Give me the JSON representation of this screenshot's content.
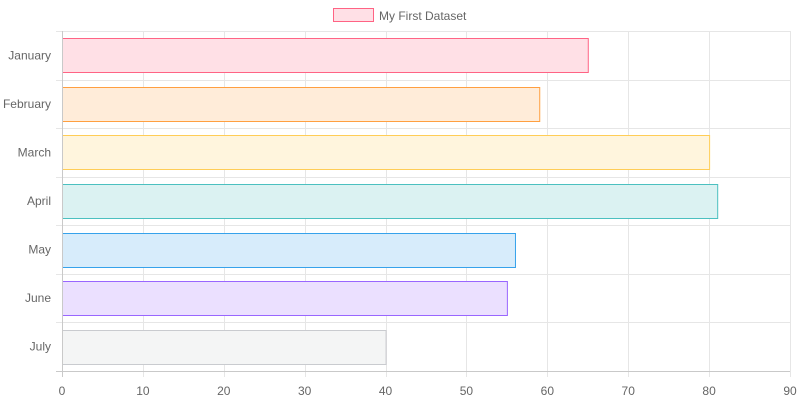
{
  "chart_data": {
    "type": "bar",
    "orientation": "horizontal",
    "categories": [
      "January",
      "February",
      "March",
      "April",
      "May",
      "June",
      "July"
    ],
    "series": [
      {
        "name": "My First Dataset",
        "values": [
          65,
          59,
          80,
          81,
          56,
          55,
          40
        ]
      }
    ],
    "xlim": [
      0,
      90
    ],
    "x_ticks": [
      0,
      10,
      20,
      30,
      40,
      50,
      60,
      70,
      80,
      90
    ],
    "grid": true,
    "legend_position": "top-center",
    "bar_colors": [
      {
        "fill": "#ffe0e6",
        "stroke": "#ff6384"
      },
      {
        "fill": "#ffecd9",
        "stroke": "#ff9f40"
      },
      {
        "fill": "#fff5dd",
        "stroke": "#ffcd56"
      },
      {
        "fill": "#dbf2f2",
        "stroke": "#4bc0c0"
      },
      {
        "fill": "#d7ecfb",
        "stroke": "#36a2eb"
      },
      {
        "fill": "#ebe0ff",
        "stroke": "#9966ff"
      },
      {
        "fill": "#f4f5f5",
        "stroke": "#c9cbcf"
      }
    ],
    "legend_color": {
      "fill": "#ffe0e6",
      "stroke": "#ff6384"
    },
    "grid_color": "#e6e6e6",
    "axis_color": "#c9c9c9",
    "text_color": "#666666"
  }
}
